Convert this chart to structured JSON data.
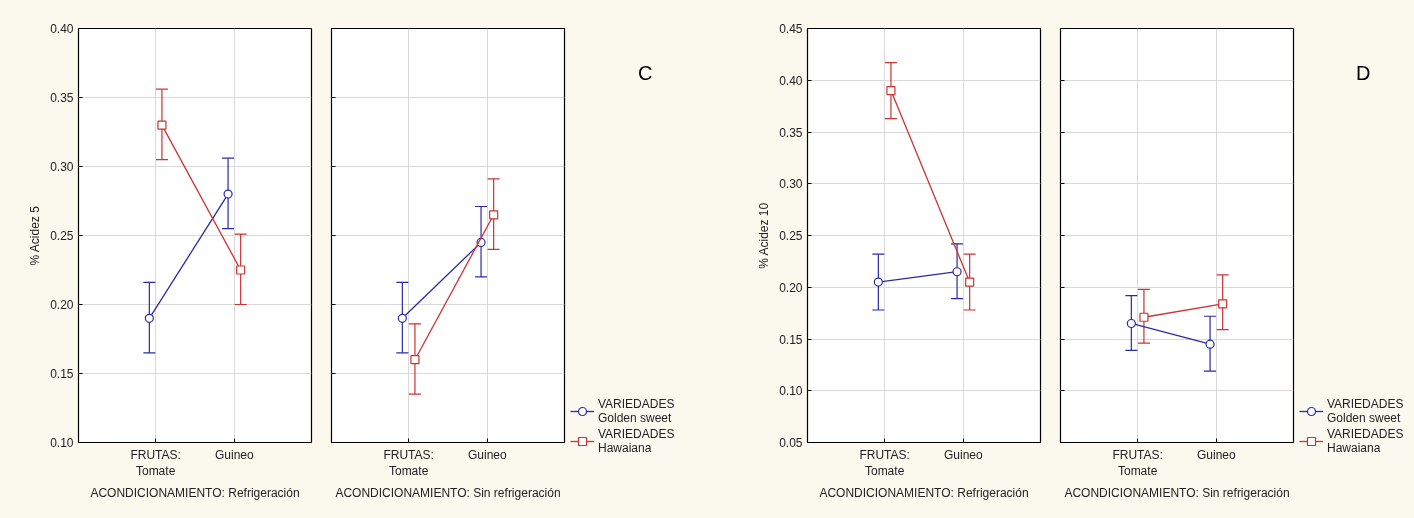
{
  "chart_data": [
    {
      "type": "line",
      "categories": [
        "FRUTAS: Tomate",
        "Guineo"
      ],
      "xlabel": "ACONDICIONAMIENTO: Refrigeración",
      "ylabel": "% Acidez 5",
      "ylim": [
        0.1,
        0.4
      ],
      "yticks": [
        {
          "value": 0.1,
          "label": "0.10"
        },
        {
          "value": 0.15,
          "label": "0.15"
        },
        {
          "value": 0.2,
          "label": "0.20"
        },
        {
          "value": 0.25,
          "label": "0.25"
        },
        {
          "value": 0.3,
          "label": "0.30"
        },
        {
          "value": 0.35,
          "label": "0.35"
        },
        {
          "value": 0.4,
          "label": "0.40"
        }
      ],
      "grid": true,
      "series": [
        {
          "color": "#2a2aa8",
          "marker": "circle",
          "values": [
            0.19,
            0.28
          ],
          "errors": [
            [
              0.165,
              0.216
            ],
            [
              0.255,
              0.306
            ]
          ]
        },
        {
          "color": "#cc3333",
          "marker": "square",
          "values": [
            0.33,
            0.225
          ],
          "errors": [
            [
              0.305,
              0.356
            ],
            [
              0.2,
              0.251
            ]
          ]
        }
      ]
    },
    {
      "type": "line",
      "categories": [
        "FRUTAS: Tomate",
        "Guineo"
      ],
      "xlabel": "ACONDICIONAMIENTO: Sin refrigeración",
      "ylim": [
        0.1,
        0.4
      ],
      "yticks": [
        0.1,
        0.15,
        0.2,
        0.25,
        0.3,
        0.35,
        0.4
      ],
      "tick_labels": "x",
      "grid": true,
      "legend": "bottom right",
      "annotations": [
        "C"
      ],
      "series": [
        {
          "name": "VARIEDADES Golden sweet",
          "color": "#2a2aa8",
          "marker": "circle",
          "values": [
            0.19,
            0.245
          ],
          "errors": [
            [
              0.165,
              0.216
            ],
            [
              0.22,
              0.271
            ]
          ]
        },
        {
          "name": "VARIEDADES Hawaiana",
          "color": "#cc3333",
          "marker": "square",
          "values": [
            0.16,
            0.265
          ],
          "errors": [
            [
              0.135,
              0.186
            ],
            [
              0.24,
              0.291
            ]
          ]
        }
      ]
    },
    {
      "type": "line",
      "categories": [
        "FRUTAS: Tomate",
        "Guineo"
      ],
      "xlabel": "ACONDICIONAMIENTO: Refrigeración",
      "ylabel": "% Acidez 10",
      "ylim": [
        0.05,
        0.45
      ],
      "yticks": [
        {
          "value": 0.05,
          "label": "0.05"
        },
        {
          "value": 0.1,
          "label": "0.10"
        },
        {
          "value": 0.15,
          "label": "0.15"
        },
        {
          "value": 0.2,
          "label": "0.20"
        },
        {
          "value": 0.25,
          "label": "0.25"
        },
        {
          "value": 0.3,
          "label": "0.30"
        },
        {
          "value": 0.35,
          "label": "0.35"
        },
        {
          "value": 0.4,
          "label": "0.40"
        },
        {
          "value": 0.45,
          "label": "0.45"
        }
      ],
      "grid": true,
      "series": [
        {
          "color": "#2a2aa8",
          "marker": "circle",
          "values": [
            0.205,
            0.215
          ],
          "errors": [
            [
              0.178,
              0.232
            ],
            [
              0.189,
              0.242
            ]
          ]
        },
        {
          "color": "#cc3333",
          "marker": "square",
          "values": [
            0.39,
            0.205
          ],
          "errors": [
            [
              0.363,
              0.417
            ],
            [
              0.178,
              0.232
            ]
          ]
        }
      ]
    },
    {
      "type": "line",
      "categories": [
        "FRUTAS: Tomate",
        "Guineo"
      ],
      "xlabel": "ACONDICIONAMIENTO: Sin refrigeración",
      "ylim": [
        0.05,
        0.45
      ],
      "yticks": [
        0.05,
        0.1,
        0.15,
        0.2,
        0.25,
        0.3,
        0.35,
        0.4,
        0.45
      ],
      "tick_labels": "x",
      "grid": true,
      "legend": "bottom right",
      "annotations": [
        "D"
      ],
      "series": [
        {
          "name": "VARIEDADES Golden sweet",
          "color": "#2a2aa8",
          "marker": "circle",
          "values": [
            0.165,
            0.145
          ],
          "errors": [
            [
              0.139,
              0.192
            ],
            [
              0.119,
              0.172
            ]
          ]
        },
        {
          "name": "VARIEDADES Hawaiana",
          "color": "#cc3333",
          "marker": "square",
          "values": [
            0.171,
            0.184
          ],
          "errors": [
            [
              0.146,
              0.198
            ],
            [
              0.159,
              0.212
            ]
          ]
        }
      ]
    }
  ]
}
